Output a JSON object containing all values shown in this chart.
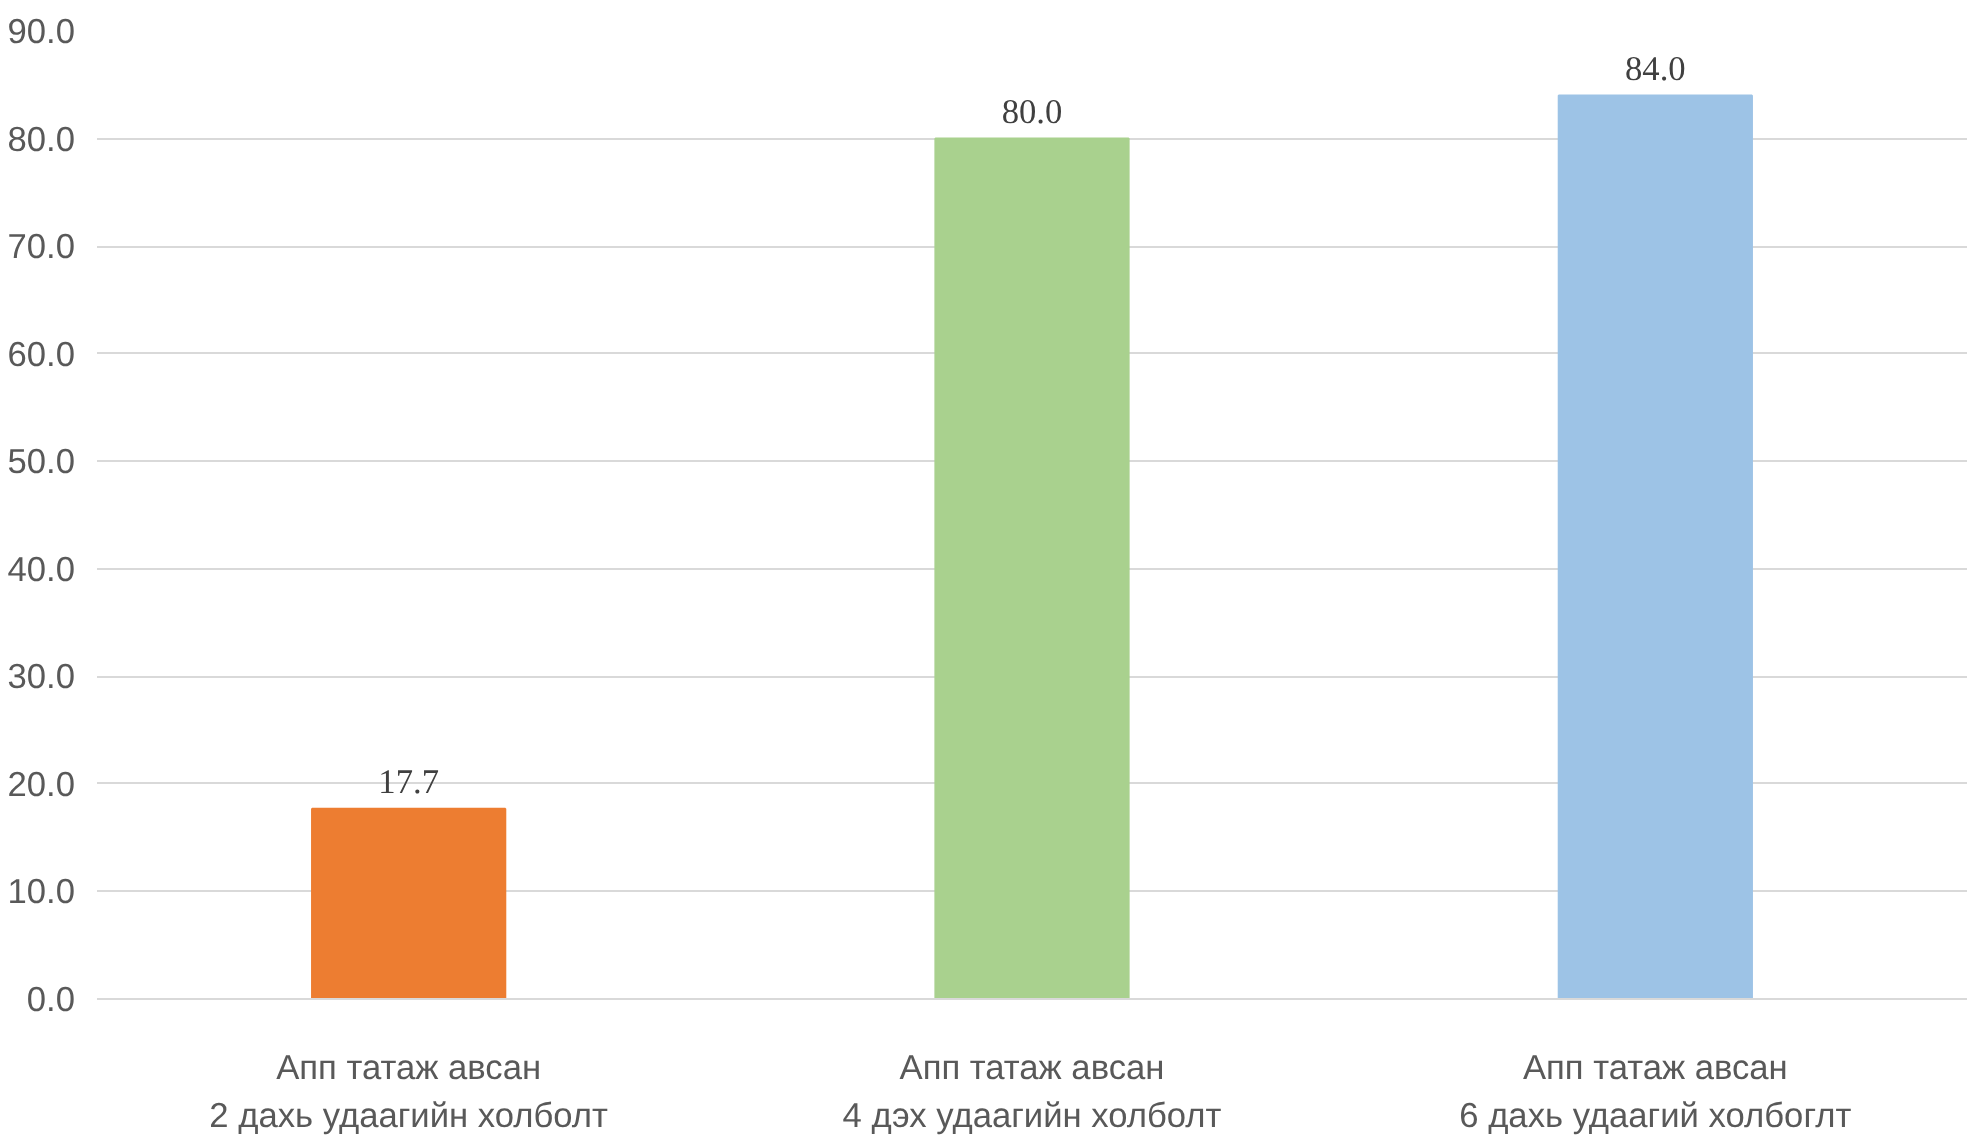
{
  "chart_data": {
    "type": "bar",
    "categories": [
      "Апп татаж авсан\n2 дахь удаагийн холболт",
      "Апп татаж авсан\n4 дэх удаагийн холболт",
      "Апп татаж авсан\n6 дахь удаагий холбоглт"
    ],
    "values": [
      17.7,
      80.0,
      84.0
    ],
    "colors": [
      "#ed7d31",
      "#a9d18e",
      "#9dc3e6"
    ],
    "ylim": [
      0,
      90
    ],
    "yticks": [
      {
        "value": 0,
        "label": "0.0"
      },
      {
        "value": 10,
        "label": "10.0"
      },
      {
        "value": 20,
        "label": "20.0"
      },
      {
        "value": 30,
        "label": "30.0"
      },
      {
        "value": 40,
        "label": "40.0"
      },
      {
        "value": 50,
        "label": "50.0"
      },
      {
        "value": 60,
        "label": "60.0"
      },
      {
        "value": 70,
        "label": "70.0"
      },
      {
        "value": 80,
        "label": "80.0"
      },
      {
        "value": 90,
        "label": "90.0"
      }
    ],
    "value_labels": [
      "17.7",
      "80.0",
      "84.0"
    ],
    "grid": "y"
  }
}
